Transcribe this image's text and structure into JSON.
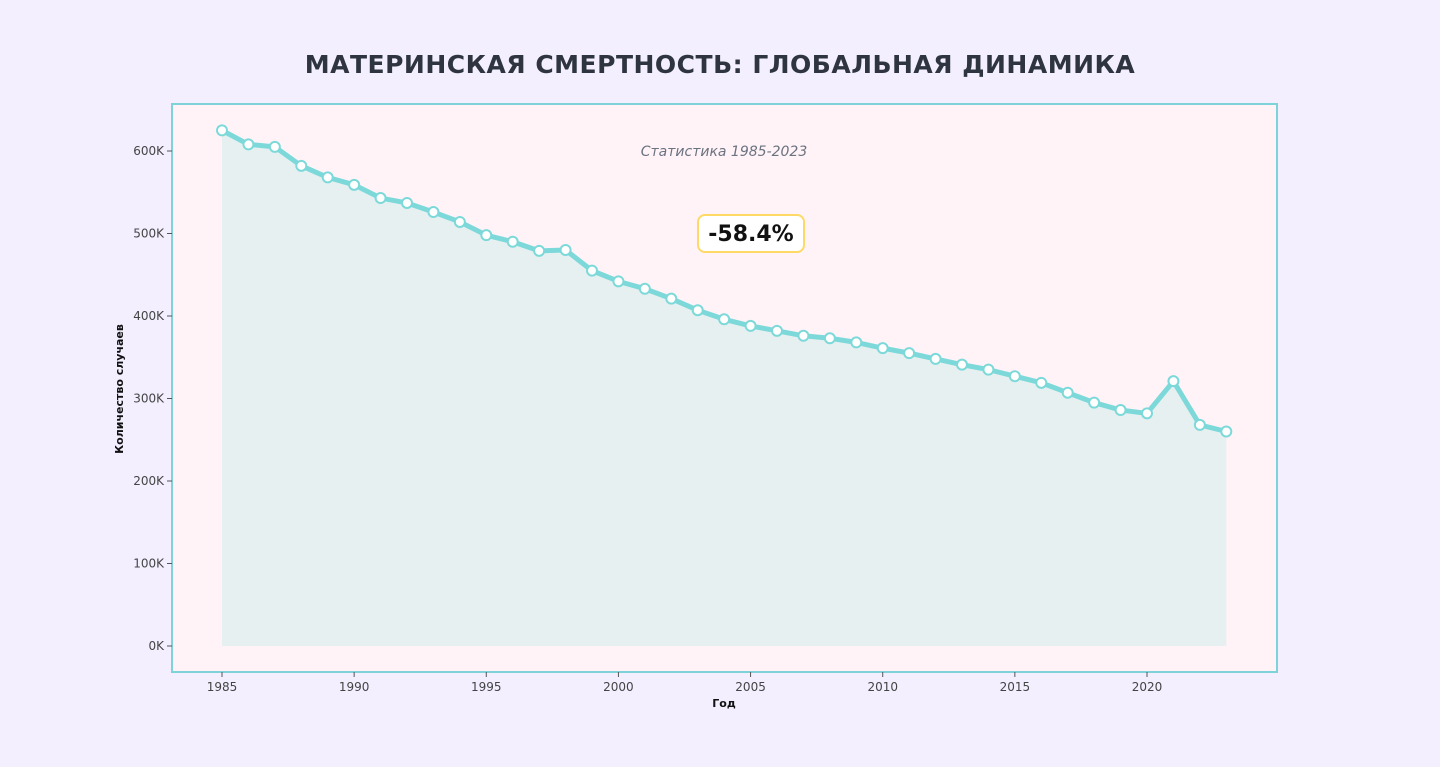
{
  "chart_data": {
    "type": "area",
    "title": "МАТЕРИНСКАЯ СМЕРТНОСТЬ: ГЛОБАЛЬНАЯ ДИНАМИКА",
    "subtitle": "Статистика 1985-2023",
    "xlabel": "Год",
    "ylabel": "Количество случаев",
    "annotation": "-58.4%",
    "x": [
      1985,
      1986,
      1987,
      1988,
      1989,
      1990,
      1991,
      1992,
      1993,
      1994,
      1995,
      1996,
      1997,
      1998,
      1999,
      2000,
      2001,
      2002,
      2003,
      2004,
      2005,
      2006,
      2007,
      2008,
      2009,
      2010,
      2011,
      2012,
      2013,
      2014,
      2015,
      2016,
      2017,
      2018,
      2019,
      2020,
      2021,
      2022,
      2023
    ],
    "values": [
      625000,
      608000,
      605000,
      582000,
      568000,
      559000,
      543000,
      537000,
      526000,
      514000,
      498000,
      490000,
      479000,
      480000,
      455000,
      442000,
      433000,
      421000,
      407000,
      396000,
      388000,
      382000,
      376000,
      373000,
      368000,
      361000,
      355000,
      348000,
      341000,
      335000,
      327000,
      319000,
      307000,
      295000,
      286000,
      282000,
      321000,
      268000,
      260000
    ],
    "xticks": [
      1985,
      1990,
      1995,
      2000,
      2005,
      2010,
      2015,
      2020
    ],
    "yticks": [
      0,
      100000,
      200000,
      300000,
      400000,
      500000,
      600000
    ],
    "ytick_labels": [
      "0K",
      "100K",
      "200K",
      "300K",
      "400K",
      "500K",
      "600K"
    ],
    "xlim": [
      1983.1,
      2024.9
    ],
    "ylim": [
      -30000,
      660000
    ],
    "colors": {
      "line": "#7dd9d9",
      "fill": "#e6eff0",
      "plot_bg": "#fff3f7",
      "frame": "#7dd3d8",
      "badge_border": "#ffd966"
    }
  }
}
